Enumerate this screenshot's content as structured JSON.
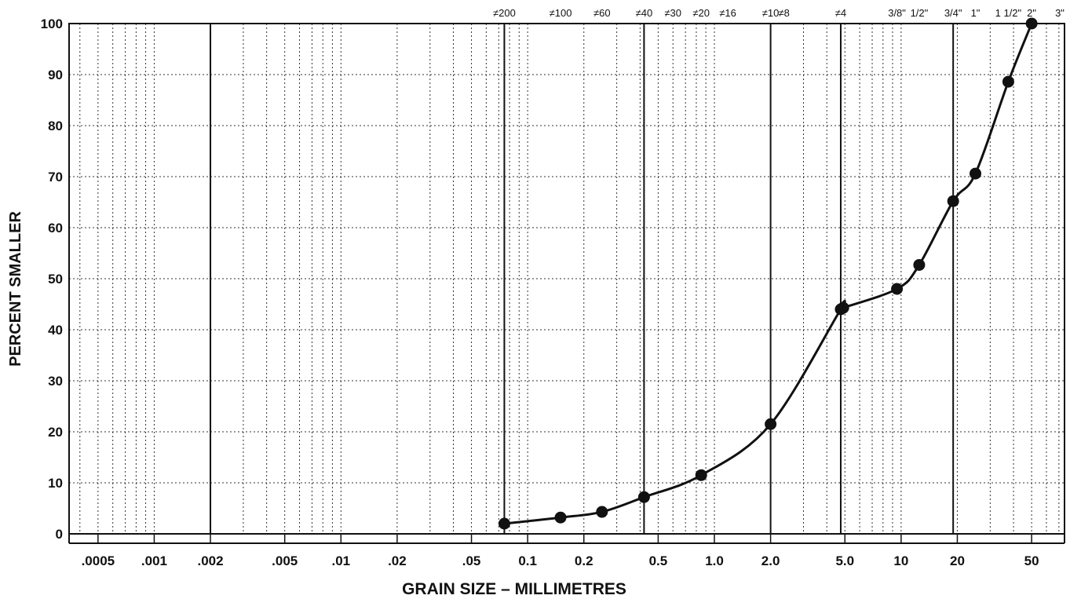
{
  "chart_data": {
    "type": "line",
    "xlabel": "GRAIN SIZE – MILLIMETRES",
    "ylabel": "PERCENT SMALLER",
    "x_scale": "log",
    "xlim": [
      0.00035,
      75
    ],
    "ylim": [
      0,
      100
    ],
    "y_ticks": [
      "100",
      "90",
      "80",
      "70",
      "60",
      "50",
      "40",
      "30",
      "20",
      "10",
      "0"
    ],
    "x_ticks": [
      {
        "value": 0.0005,
        "label": ".0005"
      },
      {
        "value": 0.001,
        "label": ".001"
      },
      {
        "value": 0.002,
        "label": ".002"
      },
      {
        "value": 0.005,
        "label": ".005"
      },
      {
        "value": 0.01,
        "label": ".01"
      },
      {
        "value": 0.02,
        "label": ".02"
      },
      {
        "value": 0.05,
        "label": ".05"
      },
      {
        "value": 0.1,
        "label": "0.1"
      },
      {
        "value": 0.2,
        "label": "0.2"
      },
      {
        "value": 0.5,
        "label": "0.5"
      },
      {
        "value": 1.0,
        "label": "1.0"
      },
      {
        "value": 2.0,
        "label": "2.0"
      },
      {
        "value": 5.0,
        "label": "5.0"
      },
      {
        "value": 10,
        "label": "10"
      },
      {
        "value": 20,
        "label": "20"
      },
      {
        "value": 50,
        "label": "50"
      }
    ],
    "sieve_labels": [
      {
        "value": 0.075,
        "label": "≠200"
      },
      {
        "value": 0.15,
        "label": "≠100"
      },
      {
        "value": 0.25,
        "label": "≠60"
      },
      {
        "value": 0.42,
        "label": "≠40"
      },
      {
        "value": 0.6,
        "label": "≠30"
      },
      {
        "value": 0.85,
        "label": "≠20"
      },
      {
        "value": 1.18,
        "label": "≠16"
      },
      {
        "value": 2.0,
        "label": "≠10"
      },
      {
        "value": 2.36,
        "label": "≠8"
      },
      {
        "value": 4.75,
        "label": "≠4"
      },
      {
        "value": 9.5,
        "label": "3/8\""
      },
      {
        "value": 12.5,
        "label": "1/2\""
      },
      {
        "value": 19,
        "label": "3/4\""
      },
      {
        "value": 25,
        "label": "1\""
      },
      {
        "value": 37.5,
        "label": "1 1/2\""
      },
      {
        "value": 50,
        "label": "2\""
      },
      {
        "value": 75,
        "label": "3\""
      }
    ],
    "major_lines": [
      0.002,
      0.075,
      0.42,
      2.0,
      4.75,
      19
    ],
    "grid": true,
    "series": [
      {
        "values": [
          {
            "x": 0.075,
            "y": 2
          },
          {
            "x": 0.15,
            "y": 3.2
          },
          {
            "x": 0.25,
            "y": 4.3
          },
          {
            "x": 0.42,
            "y": 7.2
          },
          {
            "x": 0.85,
            "y": 11.5
          },
          {
            "x": 2.0,
            "y": 21.5
          },
          {
            "x": 4.75,
            "y": 44
          },
          {
            "x": 4.9,
            "y": 44.3
          },
          {
            "x": 9.5,
            "y": 48
          },
          {
            "x": 12.5,
            "y": 52.7
          },
          {
            "x": 19,
            "y": 65.2
          },
          {
            "x": 25,
            "y": 70.6
          },
          {
            "x": 37.5,
            "y": 88.6
          },
          {
            "x": 50,
            "y": 100
          }
        ]
      }
    ]
  }
}
